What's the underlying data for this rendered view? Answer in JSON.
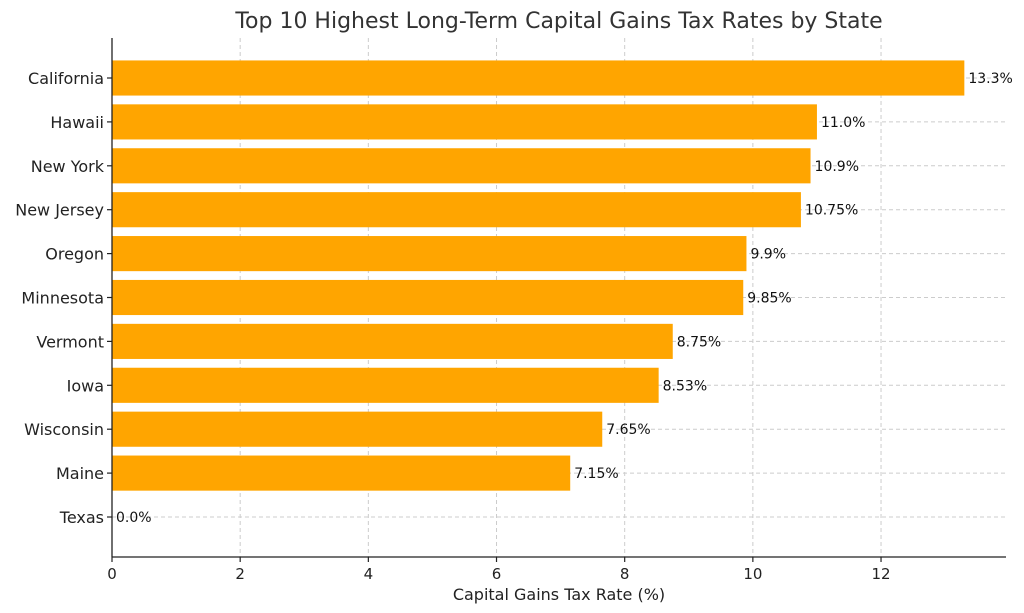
{
  "chart_data": {
    "type": "bar",
    "orientation": "horizontal",
    "title": "Top 10 Highest Long-Term Capital Gains Tax Rates by State",
    "xlabel": "Capital Gains Tax Rate (%)",
    "ylabel": "",
    "categories": [
      "California",
      "Hawaii",
      "New York",
      "New Jersey",
      "Oregon",
      "Minnesota",
      "Vermont",
      "Iowa",
      "Wisconsin",
      "Maine",
      "Texas"
    ],
    "values": [
      13.3,
      11.0,
      10.9,
      10.75,
      9.9,
      9.85,
      8.75,
      8.53,
      7.65,
      7.15,
      0.0
    ],
    "value_labels": [
      "13.3%",
      "11.0%",
      "10.9%",
      "10.75%",
      "9.9%",
      "9.85%",
      "8.75%",
      "8.53%",
      "7.65%",
      "7.15%",
      "0.0%"
    ],
    "xticks": [
      0,
      2,
      4,
      6,
      8,
      10,
      12
    ],
    "xlim": [
      0,
      13.95
    ],
    "grid": true,
    "bar_color": "#FFA500"
  }
}
